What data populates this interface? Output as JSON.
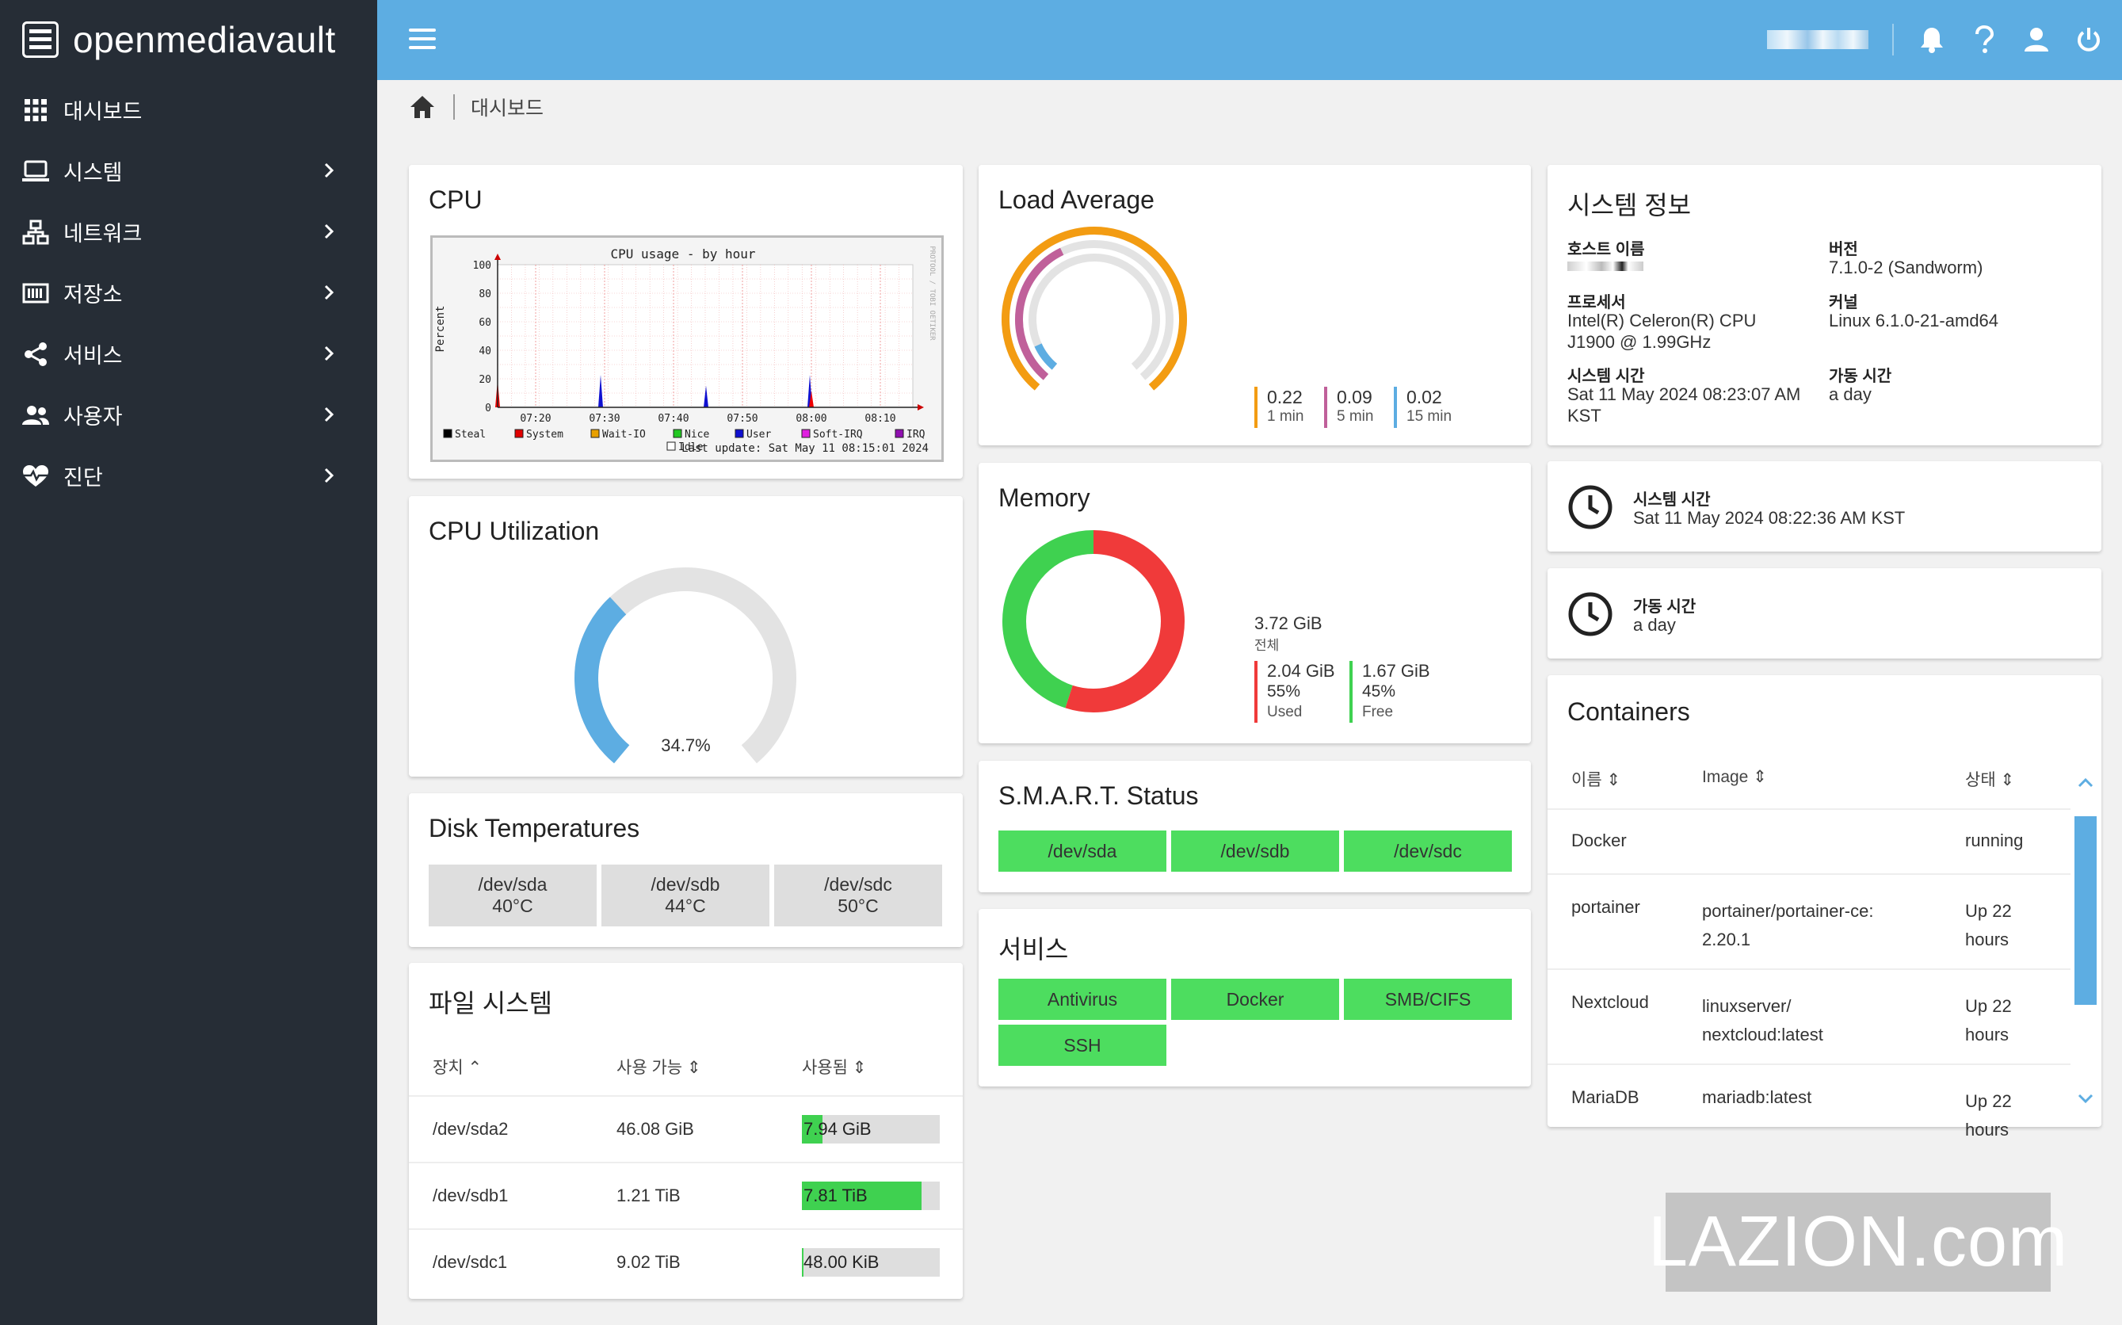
{
  "app": {
    "brand": "openmediavault"
  },
  "sidebar": {
    "items": [
      {
        "label": "대시보드",
        "icon": "dashboard-grid-icon"
      },
      {
        "label": "시스템",
        "icon": "laptop-icon"
      },
      {
        "label": "네트워크",
        "icon": "network-icon"
      },
      {
        "label": "저장소",
        "icon": "storage-icon"
      },
      {
        "label": "서비스",
        "icon": "share-icon"
      },
      {
        "label": "사용자",
        "icon": "users-icon"
      },
      {
        "label": "진단",
        "icon": "heart-pulse-icon"
      }
    ]
  },
  "breadcrumb": {
    "current": "대시보드"
  },
  "cpu": {
    "title": "CPU",
    "graph": {
      "title": "CPU usage - by hour",
      "ylabel": "Percent",
      "y_ticks": [
        "100",
        "80",
        "60",
        "40",
        "20",
        "0"
      ],
      "x_ticks": [
        "07:20",
        "07:30",
        "07:40",
        "07:50",
        "08:00",
        "08:10"
      ],
      "legend": [
        "Steal",
        "System",
        "Wait-IO",
        "Nice",
        "User",
        "Soft-IRQ",
        "IRQ",
        "Idle"
      ],
      "legend_colors": [
        "#000000",
        "#e00000",
        "#e8a000",
        "#22c822",
        "#1010d0",
        "#e020e0",
        "#9010b0",
        "#ffffff"
      ],
      "last_update": "Last update: Sat May 11 08:15:01 2024",
      "side_text": "PROTOOL / TOBI OETIKER"
    }
  },
  "cpu_util": {
    "title": "CPU Utilization",
    "value_label": "34.7%",
    "value": 34.7
  },
  "disk_temps": {
    "title": "Disk Temperatures",
    "items": [
      {
        "device": "/dev/sda",
        "temp": "40°C"
      },
      {
        "device": "/dev/sdb",
        "temp": "44°C"
      },
      {
        "device": "/dev/sdc",
        "temp": "50°C"
      }
    ]
  },
  "filesystems": {
    "title": "파일 시스템",
    "headers": {
      "device": "장치",
      "available": "사용 가능",
      "used": "사용됨"
    },
    "rows": [
      {
        "device": "/dev/sda2",
        "available": "46.08 GiB",
        "used": "7.94 GiB",
        "used_fraction": 0.15
      },
      {
        "device": "/dev/sdb1",
        "available": "1.21 TiB",
        "used": "7.81 TiB",
        "used_fraction": 0.87
      },
      {
        "device": "/dev/sdc1",
        "available": "9.02 TiB",
        "used": "48.00 KiB",
        "used_fraction": 0.01
      }
    ]
  },
  "load_average": {
    "title": "Load Average",
    "items": [
      {
        "value": "0.22",
        "label": "1 min",
        "color": "#f39c12"
      },
      {
        "value": "0.09",
        "label": "5 min",
        "color": "#c0609a"
      },
      {
        "value": "0.02",
        "label": "15 min",
        "color": "#5dade2"
      }
    ]
  },
  "memory": {
    "title": "Memory",
    "total": "3.72 GiB",
    "total_label": "전체",
    "used": {
      "value": "2.04 GiB",
      "pct": "55%",
      "label": "Used",
      "color": "#f03a3a"
    },
    "free": {
      "value": "1.67 GiB",
      "pct": "45%",
      "label": "Free",
      "color": "#3fd150"
    }
  },
  "smart": {
    "title": "S.M.A.R.T. Status",
    "items": [
      "/dev/sda",
      "/dev/sdb",
      "/dev/sdc"
    ]
  },
  "services": {
    "title": "서비스",
    "items": [
      "Antivirus",
      "Docker",
      "SMB/CIFS",
      "SSH"
    ]
  },
  "sysinfo": {
    "title": "시스템 정보",
    "hostname_label": "호스트 이름",
    "version_label": "버전",
    "version": "7.1.0-2 (Sandworm)",
    "processor_label": "프로세서",
    "processor": "Intel(R) Celeron(R) CPU J1900 @ 1.99GHz",
    "kernel_label": "커널",
    "kernel": "Linux 6.1.0-21-amd64",
    "time_label": "시스템 시간",
    "time": "Sat 11 May 2024 08:23:07 AM KST",
    "uptime_label": "가동 시간",
    "uptime": "a day"
  },
  "systime_widget": {
    "label": "시스템 시간",
    "value": "Sat 11 May 2024 08:22:36 AM KST"
  },
  "uptime_widget": {
    "label": "가동 시간",
    "value": "a day"
  },
  "containers": {
    "title": "Containers",
    "headers": {
      "name": "이름",
      "image": "Image",
      "status": "상태"
    },
    "rows": [
      {
        "name": "Docker",
        "image": "",
        "status": "running"
      },
      {
        "name": "portainer",
        "image": "portainer/portainer-ce:\n2.20.1",
        "status": "Up 22\nhours"
      },
      {
        "name": "Nextcloud",
        "image": "linuxserver/\nnextcloud:latest",
        "status": "Up 22\nhours"
      },
      {
        "name": "MariaDB",
        "image": "mariadb:latest",
        "status": "Up 22\nhours"
      }
    ]
  },
  "watermark": "LAZION.com"
}
